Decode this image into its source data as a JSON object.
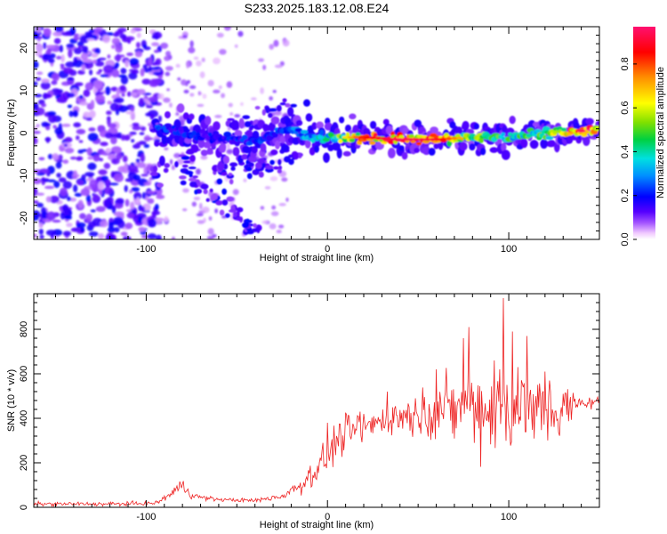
{
  "title": "S233.2025.183.12.08.E24",
  "chart_data": [
    {
      "type": "heatmap",
      "title": "S233.2025.183.12.08.E24",
      "xlabel": "Height of straight line (km)",
      "ylabel": "Frequency (Hz)",
      "xlim": [
        -162,
        150
      ],
      "ylim": [
        -25,
        25
      ],
      "xticks": [
        -100,
        0,
        100
      ],
      "yticks": [
        -20,
        -10,
        0,
        10,
        20
      ],
      "colorbar": {
        "label": "Normalized spectral amplitude",
        "range": [
          0,
          0.97
        ],
        "ticks": [
          0.0,
          0.2,
          0.4,
          0.6,
          0.8
        ],
        "colormap": [
          "#ffffff",
          "#f0c8ff",
          "#a050ff",
          "#5500ff",
          "#0000ff",
          "#0090ff",
          "#00e0e0",
          "#00d040",
          "#80e000",
          "#ffff00",
          "#ff9000",
          "#ff0000",
          "#ff1070"
        ]
      },
      "features": {
        "ridge_center_hz": [
          [
            -95,
            1.5
          ],
          [
            -80,
            0
          ],
          [
            -60,
            -1
          ],
          [
            -40,
            -2
          ],
          [
            -20,
            1
          ],
          [
            -10,
            -1
          ],
          [
            0,
            -1
          ],
          [
            20,
            -1
          ],
          [
            40,
            -1.5
          ],
          [
            60,
            -1.5
          ],
          [
            80,
            -1
          ],
          [
            100,
            -1
          ],
          [
            120,
            0
          ],
          [
            150,
            0.5
          ]
        ],
        "ridge_peak_amplitude": [
          [
            -95,
            0.25
          ],
          [
            -60,
            0.2
          ],
          [
            -20,
            0.3
          ],
          [
            0,
            0.45
          ],
          [
            20,
            0.85
          ],
          [
            40,
            0.95
          ],
          [
            60,
            0.9
          ],
          [
            80,
            0.6
          ],
          [
            100,
            0.5
          ],
          [
            120,
            0.5
          ],
          [
            140,
            0.95
          ]
        ],
        "diagonal_branches": [
          {
            "from": [
              -95,
              -10
            ],
            "to": [
              -20,
              8
            ]
          },
          {
            "from": [
              -80,
              -10
            ],
            "to": [
              -35,
              -24
            ]
          },
          {
            "from": [
              -60,
              -10
            ],
            "to": [
              -15,
              -5
            ]
          }
        ],
        "noise_region_x": [
          -162,
          -92
        ]
      }
    },
    {
      "type": "line",
      "xlabel": "Height of straight line (km)",
      "ylabel": "SNR (10 * v/v)",
      "xlim": [
        -162,
        150
      ],
      "ylim": [
        0,
        960
      ],
      "xticks": [
        -100,
        0,
        100
      ],
      "yticks": [
        0,
        200,
        400,
        600,
        800
      ],
      "color": "#ee2222",
      "envelope": {
        "x": [
          -162,
          -120,
          -95,
          -90,
          -85,
          -80,
          -75,
          -70,
          -60,
          -40,
          -25,
          -15,
          -5,
          0,
          5,
          10,
          20,
          30,
          40,
          50,
          60,
          70,
          80,
          90,
          100,
          110,
          120,
          130,
          140,
          150
        ],
        "mean": [
          15,
          15,
          18,
          40,
          70,
          100,
          55,
          45,
          35,
          30,
          50,
          100,
          180,
          240,
          300,
          330,
          360,
          390,
          410,
          420,
          440,
          440,
          450,
          440,
          450,
          440,
          430,
          430,
          470,
          475
        ],
        "spread": [
          8,
          8,
          8,
          12,
          20,
          30,
          15,
          10,
          8,
          8,
          15,
          40,
          60,
          70,
          80,
          80,
          70,
          60,
          70,
          90,
          110,
          140,
          170,
          180,
          190,
          180,
          160,
          120,
          30,
          20
        ]
      },
      "spikes": [
        [
          0,
          380
        ],
        [
          18,
          430
        ],
        [
          22,
          370
        ],
        [
          33,
          520
        ],
        [
          60,
          620
        ],
        [
          75,
          760
        ],
        [
          78,
          810
        ],
        [
          92,
          660
        ],
        [
          95,
          620
        ],
        [
          97,
          940
        ],
        [
          102,
          790
        ],
        [
          105,
          630
        ],
        [
          110,
          770
        ],
        [
          115,
          500
        ],
        [
          120,
          610
        ],
        [
          123,
          520
        ],
        [
          130,
          510
        ]
      ]
    }
  ]
}
